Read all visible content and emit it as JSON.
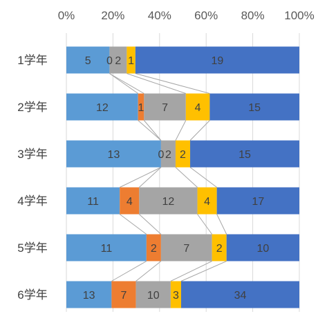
{
  "chart_data": {
    "type": "bar",
    "orientation": "horizontal",
    "stacked": "percent",
    "categories": [
      "1学年",
      "2学年",
      "3学年",
      "4学年",
      "5学年",
      "6学年"
    ],
    "x_ticks": [
      "0%",
      "20%",
      "40%",
      "60%",
      "80%",
      "100%"
    ],
    "xlim": [
      0,
      100
    ],
    "grid": true,
    "legend": "none",
    "series_lines": true,
    "series": [
      {
        "color": "#5b9bd5",
        "values": [
          5,
          12,
          13,
          11,
          11,
          13
        ]
      },
      {
        "color": "#ed7d31",
        "values": [
          0,
          1,
          0,
          4,
          2,
          7
        ]
      },
      {
        "color": "#a5a5a5",
        "values": [
          2,
          7,
          2,
          12,
          7,
          10
        ]
      },
      {
        "color": "#ffc000",
        "values": [
          1,
          4,
          2,
          4,
          2,
          3
        ]
      },
      {
        "color": "#4472c4",
        "values": [
          19,
          15,
          15,
          17,
          10,
          34
        ]
      }
    ]
  }
}
